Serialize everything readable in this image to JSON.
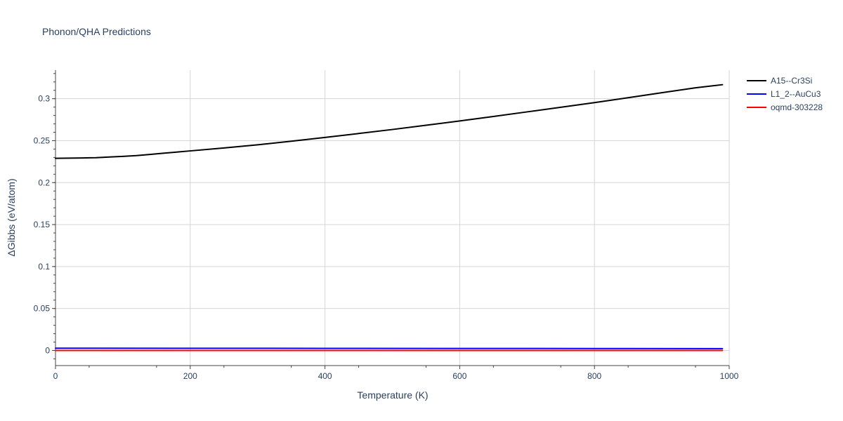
{
  "chart_data": {
    "type": "line",
    "title": "Phonon/QHA Predictions",
    "xlabel": "Temperature (K)",
    "ylabel": "ΔGibbs (eV/atom)",
    "xlim": [
      0,
      1000
    ],
    "ylim": [
      -0.018,
      0.334
    ],
    "x_ticks": [
      0,
      200,
      400,
      600,
      800,
      1000
    ],
    "y_ticks": [
      0,
      0.05,
      0.1,
      0.15,
      0.2,
      0.25,
      0.3
    ],
    "x_tick_labels": [
      "0",
      "200",
      "400",
      "600",
      "800",
      "1000"
    ],
    "y_tick_labels": [
      "0",
      "0.05",
      "0.1",
      "0.15",
      "0.2",
      "0.25",
      "0.3"
    ],
    "grid": true,
    "legend_position": "top-right",
    "series": [
      {
        "name": "A15--Cr3Si",
        "color": "#000000",
        "x": [
          0,
          20,
          40,
          60,
          80,
          100,
          120,
          140,
          160,
          180,
          200,
          250,
          300,
          350,
          400,
          450,
          500,
          550,
          600,
          650,
          700,
          750,
          800,
          850,
          900,
          950,
          990
        ],
        "y": [
          0.229,
          0.2292,
          0.2294,
          0.2297,
          0.2305,
          0.2313,
          0.2322,
          0.2336,
          0.235,
          0.2364,
          0.2378,
          0.2413,
          0.2451,
          0.2493,
          0.2538,
          0.2585,
          0.2633,
          0.2684,
          0.2735,
          0.2788,
          0.2843,
          0.2898,
          0.2953,
          0.3012,
          0.3071,
          0.313,
          0.3167
        ]
      },
      {
        "name": "L1_2--AuCu3",
        "color": "#0000ff",
        "x": [
          0,
          200,
          400,
          600,
          800,
          990
        ],
        "y": [
          0.0027,
          0.0026,
          0.0025,
          0.0024,
          0.0023,
          0.0022
        ]
      },
      {
        "name": "oqmd-303228",
        "color": "#ff0000",
        "x": [
          0,
          200,
          400,
          600,
          800,
          990
        ],
        "y": [
          0,
          0,
          0,
          0,
          0,
          0
        ]
      }
    ]
  }
}
